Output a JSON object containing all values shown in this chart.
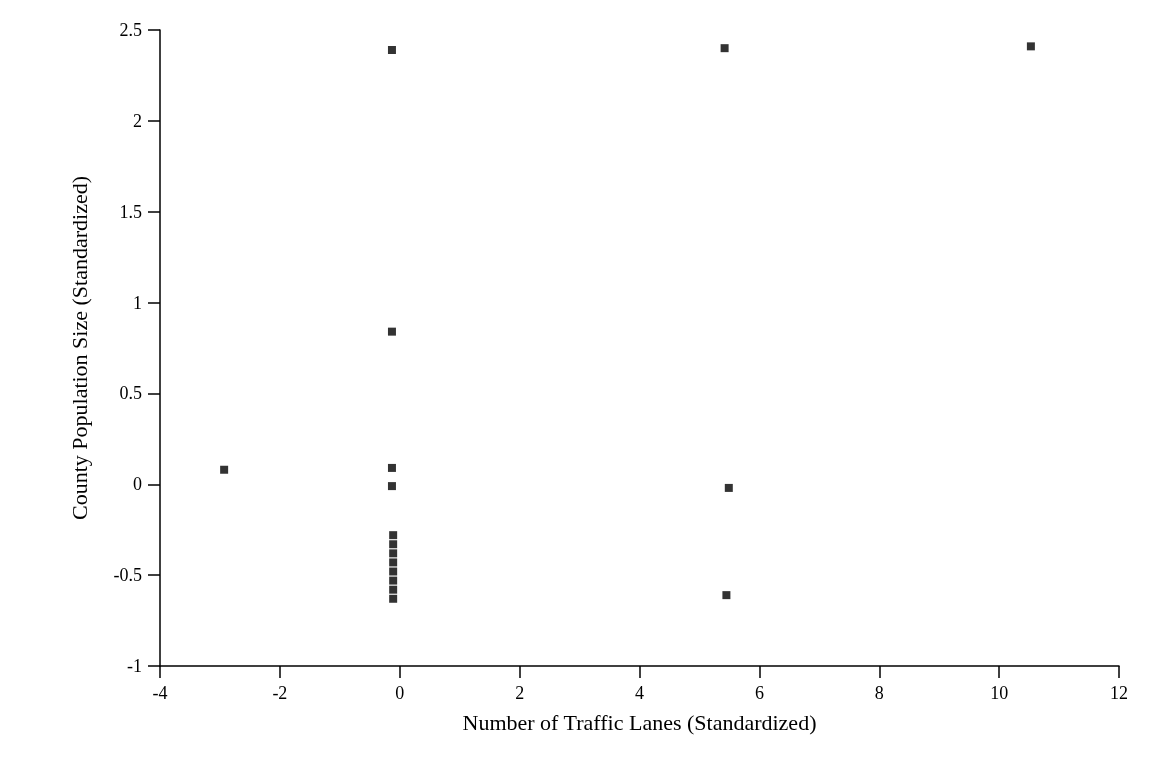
{
  "chart_data": {
    "type": "scatter",
    "xlabel": "Number of Traffic Lanes (Standardized)",
    "ylabel": "County Population Size (Standardized)",
    "x": [
      -2.93,
      -0.13,
      -0.13,
      -0.13,
      -0.13,
      -0.11,
      -0.11,
      -0.11,
      -0.11,
      -0.11,
      -0.11,
      -0.11,
      -0.11,
      5.42,
      10.53,
      5.49,
      5.45
    ],
    "values": [
      0.08,
      2.39,
      0.84,
      0.09,
      -0.01,
      -0.28,
      -0.33,
      -0.38,
      -0.43,
      -0.48,
      -0.53,
      -0.58,
      -0.63,
      2.4,
      2.41,
      -0.02,
      -0.61
    ],
    "color": "#000000",
    "marker": "square",
    "xlim": [
      -4,
      12
    ],
    "xticks": [
      -4,
      -2,
      0,
      2,
      4,
      6,
      8,
      10,
      12
    ],
    "ylim": [
      -1,
      2.5
    ],
    "yticks": [
      -1,
      -0.5,
      0,
      0.5,
      1,
      1.5,
      2,
      2.5
    ],
    "grid": false
  }
}
